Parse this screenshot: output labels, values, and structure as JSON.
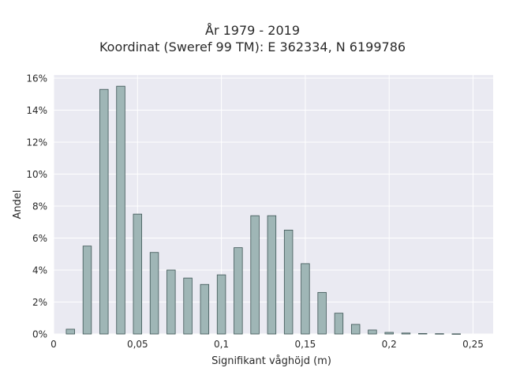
{
  "chart_data": {
    "type": "bar",
    "title": "År 1979 - 2019",
    "subtitle": "Koordinat (Sweref 99 TM): E 362334, N 6199786",
    "xlabel": "Signifikant våghöjd (m)",
    "ylabel": "Andel",
    "xlim": [
      0,
      0.262
    ],
    "ylim": [
      0,
      0.162
    ],
    "x_ticks": [
      {
        "value": 0,
        "label": "0"
      },
      {
        "value": 0.05,
        "label": "0,05"
      },
      {
        "value": 0.1,
        "label": "0,1"
      },
      {
        "value": 0.15,
        "label": "0,15"
      },
      {
        "value": 0.2,
        "label": "0,2"
      },
      {
        "value": 0.25,
        "label": "0,25"
      }
    ],
    "y_ticks": [
      {
        "value": 0,
        "label": "0%"
      },
      {
        "value": 0.02,
        "label": "2%"
      },
      {
        "value": 0.04,
        "label": "4%"
      },
      {
        "value": 0.06,
        "label": "6%"
      },
      {
        "value": 0.08,
        "label": "8%"
      },
      {
        "value": 0.1,
        "label": "10%"
      },
      {
        "value": 0.12,
        "label": "12%"
      },
      {
        "value": 0.14,
        "label": "14%"
      },
      {
        "value": 0.16,
        "label": "16%"
      }
    ],
    "bar_width": 0.005,
    "x": [
      0.01,
      0.02,
      0.03,
      0.04,
      0.05,
      0.06,
      0.07,
      0.08,
      0.09,
      0.1,
      0.11,
      0.12,
      0.13,
      0.14,
      0.15,
      0.16,
      0.17,
      0.18,
      0.19,
      0.2,
      0.21,
      0.22,
      0.23,
      0.24
    ],
    "values": [
      0.003,
      0.055,
      0.153,
      0.155,
      0.075,
      0.051,
      0.04,
      0.035,
      0.031,
      0.037,
      0.054,
      0.074,
      0.074,
      0.065,
      0.044,
      0.026,
      0.013,
      0.006,
      0.0025,
      0.001,
      0.0006,
      0.0003,
      0.0002,
      0.0001
    ],
    "grid": true,
    "colors": {
      "bar_fill": "#9fb6b6",
      "bar_edge": "#3d5555",
      "plot_bg": "#eaeaf2",
      "grid": "#ffffff"
    }
  }
}
